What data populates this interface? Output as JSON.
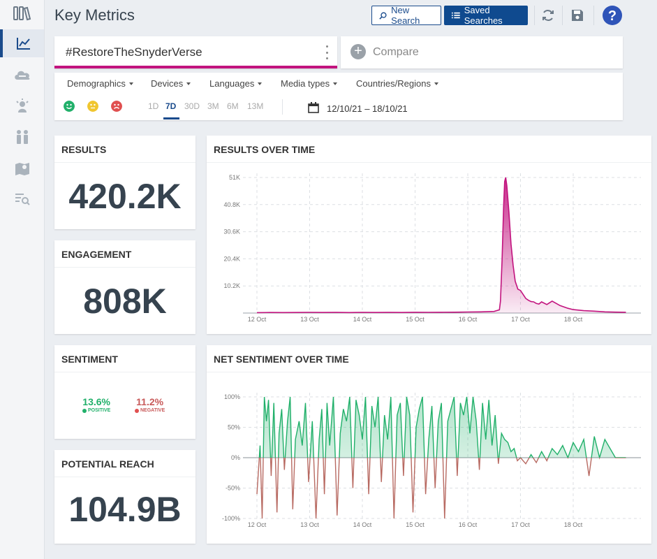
{
  "header": {
    "title": "Key Metrics",
    "new_search_label": "New Search",
    "saved_searches_label": "Saved Searches"
  },
  "query": {
    "text": "#RestoreTheSnyderVerse",
    "compare_label": "Compare"
  },
  "filters": {
    "dropdowns": [
      "Demographics",
      "Devices",
      "Languages",
      "Media types",
      "Countries/Regions"
    ],
    "ranges": [
      "1D",
      "7D",
      "30D",
      "3M",
      "6M",
      "13M"
    ],
    "active_range": "7D",
    "date_range": "12/10/21 – 18/10/21"
  },
  "colors": {
    "accent": "#c2137e",
    "brand": "#0f4a8f",
    "positive": "#21b06a",
    "negative": "#c85a5a",
    "neutral": "#f0c630"
  },
  "panels": {
    "results": {
      "title": "RESULTS",
      "value": "420.2K"
    },
    "engagement": {
      "title": "ENGAGEMENT",
      "value": "808K"
    },
    "sentiment": {
      "title": "SENTIMENT",
      "positive_value": "13.6%",
      "positive_label": "POSITIVE",
      "negative_value": "11.2%",
      "negative_label": "NEGATIVE"
    },
    "reach": {
      "title": "POTENTIAL REACH",
      "value": "104.9B"
    },
    "results_over_time": {
      "title": "RESULTS OVER TIME"
    },
    "net_sentiment_over_time": {
      "title": "NET SENTIMENT OVER TIME"
    }
  },
  "chart_data": [
    {
      "type": "area",
      "title": "RESULTS OVER TIME",
      "x_labels": [
        "12 Oct",
        "13 Oct",
        "14 Oct",
        "15 Oct",
        "16 Oct",
        "17 Oct",
        "18 Oct"
      ],
      "y_ticks": [
        "10.2K",
        "20.4K",
        "30.6K",
        "40.8K",
        "51K"
      ],
      "ylim": [
        0,
        51000
      ],
      "grid": true,
      "color": "#c2137e",
      "series": [
        {
          "x": [
            0,
            0.25,
            0.5,
            0.75,
            1,
            1.25,
            1.5,
            1.75,
            2,
            2.25,
            2.5,
            2.75,
            3,
            3.25,
            3.5,
            3.75,
            4,
            4.25,
            4.5,
            4.6,
            4.62,
            4.65,
            4.68,
            4.7,
            4.72,
            4.74,
            4.78,
            4.82,
            4.86,
            4.9,
            4.95,
            5.0,
            5.05,
            5.1,
            5.15,
            5.2,
            5.25,
            5.3,
            5.35,
            5.4,
            5.5,
            5.6,
            5.75,
            5.9,
            6.0,
            6.2,
            6.4,
            6.6,
            6.8,
            7.0
          ],
          "y": [
            150,
            200,
            180,
            210,
            250,
            200,
            230,
            180,
            260,
            220,
            240,
            200,
            300,
            260,
            280,
            320,
            400,
            450,
            600,
            1200,
            4500,
            20000,
            40000,
            49500,
            51000,
            48000,
            38000,
            26000,
            18000,
            12000,
            9000,
            8500,
            7000,
            5500,
            4800,
            4300,
            4200,
            3600,
            3400,
            4200,
            3200,
            4500,
            2800,
            1800,
            1300,
            900,
            700,
            450,
            350,
            300
          ]
        }
      ]
    },
    {
      "type": "area",
      "title": "NET SENTIMENT OVER TIME",
      "x_labels": [
        "12 Oct",
        "13 Oct",
        "14 Oct",
        "15 Oct",
        "16 Oct",
        "17 Oct",
        "18 Oct"
      ],
      "y_ticks": [
        "-100%",
        "-50%",
        "0%",
        "50%",
        "100%"
      ],
      "ylim": [
        -100,
        100
      ],
      "grid": true,
      "series": [
        {
          "x": [
            0.0,
            0.06,
            0.1,
            0.14,
            0.18,
            0.22,
            0.27,
            0.32,
            0.38,
            0.42,
            0.47,
            0.52,
            0.58,
            0.63,
            0.68,
            0.73,
            0.8,
            0.86,
            0.92,
            0.98,
            1.05,
            1.12,
            1.18,
            1.23,
            1.28,
            1.33,
            1.38,
            1.45,
            1.52,
            1.58,
            1.64,
            1.7,
            1.76,
            1.82,
            1.88,
            1.94,
            2.0,
            2.06,
            2.12,
            2.18,
            2.24,
            2.3,
            2.36,
            2.42,
            2.48,
            2.54,
            2.6,
            2.66,
            2.72,
            2.78,
            2.84,
            2.9,
            2.96,
            3.02,
            3.08,
            3.14,
            3.2,
            3.26,
            3.32,
            3.38,
            3.44,
            3.5,
            3.56,
            3.62,
            3.68,
            3.74,
            3.8,
            3.86,
            3.92,
            3.98,
            4.04,
            4.1,
            4.16,
            4.22,
            4.28,
            4.34,
            4.4,
            4.46,
            4.52,
            4.58,
            4.64,
            4.7,
            4.76,
            4.82,
            4.88,
            4.94,
            5.0,
            5.1,
            5.2,
            5.3,
            5.4,
            5.5,
            5.6,
            5.7,
            5.8,
            5.9,
            6.0,
            6.1,
            6.2,
            6.3,
            6.4,
            6.5,
            6.6,
            6.8,
            7.0
          ],
          "y": [
            -60,
            20,
            -100,
            100,
            60,
            95,
            -30,
            90,
            -90,
            40,
            80,
            -20,
            60,
            100,
            -85,
            30,
            60,
            20,
            90,
            -40,
            60,
            -100,
            30,
            80,
            -60,
            90,
            20,
            100,
            -95,
            40,
            80,
            60,
            100,
            -50,
            95,
            70,
            30,
            100,
            -60,
            85,
            50,
            100,
            -40,
            70,
            30,
            100,
            -100,
            70,
            90,
            -30,
            100,
            70,
            -90,
            50,
            80,
            100,
            -60,
            30,
            85,
            -50,
            60,
            90,
            -100,
            60,
            80,
            100,
            -30,
            90,
            70,
            100,
            40,
            100,
            60,
            -20,
            90,
            30,
            95,
            20,
            70,
            -10,
            40,
            30,
            25,
            10,
            15,
            -5,
            0,
            -10,
            5,
            -8,
            10,
            -5,
            15,
            5,
            20,
            0,
            25,
            10,
            30,
            -30,
            35,
            0,
            30,
            0,
            0
          ]
        }
      ],
      "positive_color": "#21b06a",
      "negative_color": "#b86a62"
    }
  ]
}
